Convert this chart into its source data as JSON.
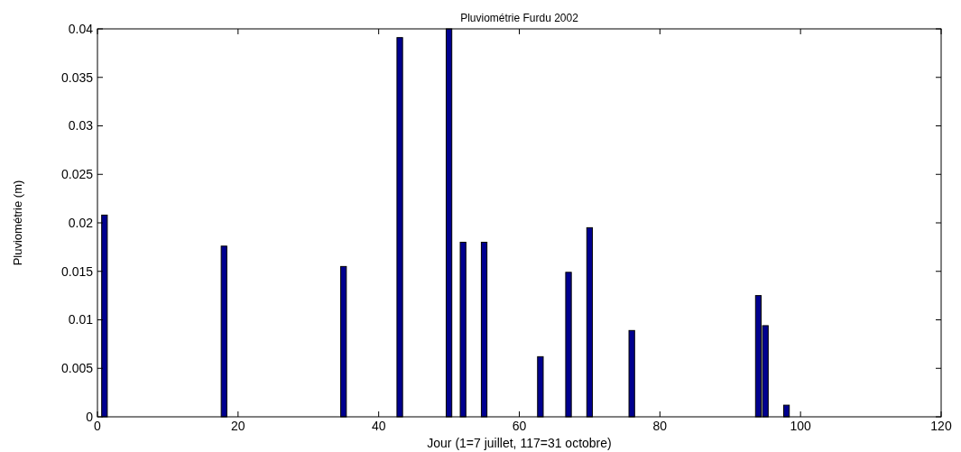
{
  "chart_data": {
    "type": "bar",
    "title": "Pluviométrie Furdu 2002",
    "xlabel": "Jour (1=7 juillet, 117=31 octobre)",
    "ylabel": "Pluviométrie (m)",
    "x": [
      1,
      18,
      35,
      43,
      50,
      52,
      55,
      63,
      67,
      70,
      76,
      94,
      95,
      98
    ],
    "values": [
      0.0208,
      0.0176,
      0.0155,
      0.0391,
      0.04,
      0.018,
      0.018,
      0.0062,
      0.0149,
      0.0195,
      0.0089,
      0.0125,
      0.0094,
      0.0012
    ],
    "color": "#00008f",
    "xlim": [
      0,
      120
    ],
    "xticks": [
      0,
      20,
      40,
      60,
      80,
      100,
      120
    ],
    "ylim": [
      0,
      0.04
    ],
    "yticks": [
      0,
      0.005,
      0.01,
      0.015,
      0.02,
      0.025,
      0.03,
      0.035,
      0.04
    ],
    "grid": false
  }
}
